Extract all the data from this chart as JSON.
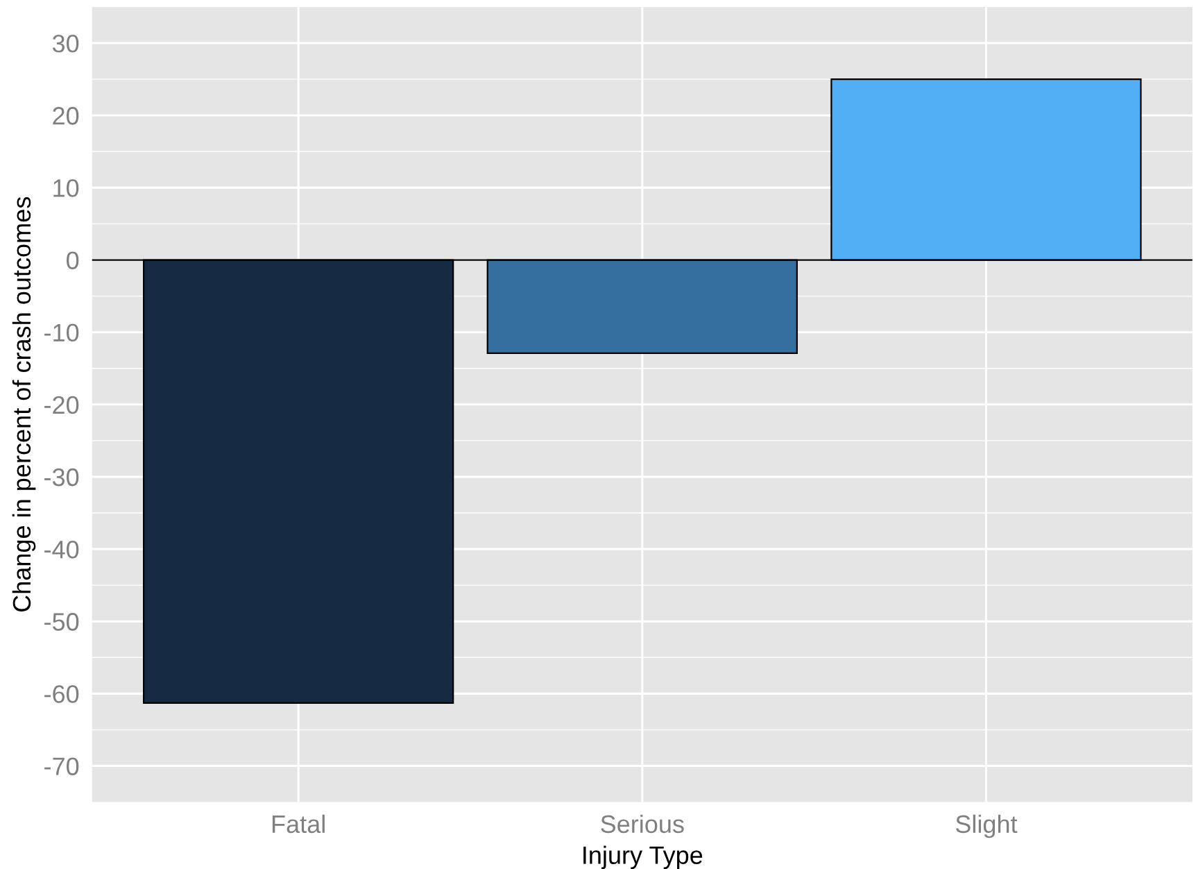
{
  "chart_data": {
    "type": "bar",
    "xlabel": "Injury Type",
    "ylabel": "Change in percent of crash outcomes",
    "categories": [
      "Fatal",
      "Serious",
      "Slight"
    ],
    "values": [
      -61.3,
      -12.9,
      25.0
    ],
    "colors": [
      "#162a43",
      "#356f9f",
      "#53aff5"
    ],
    "ylim": [
      -75,
      35
    ],
    "yticks": [
      -70,
      -60,
      -50,
      -40,
      -30,
      -20,
      -10,
      0,
      10,
      20,
      30
    ],
    "ref_lines": [
      {
        "axis": "y",
        "value": 0,
        "color": "#000000"
      }
    ],
    "grid": true
  }
}
